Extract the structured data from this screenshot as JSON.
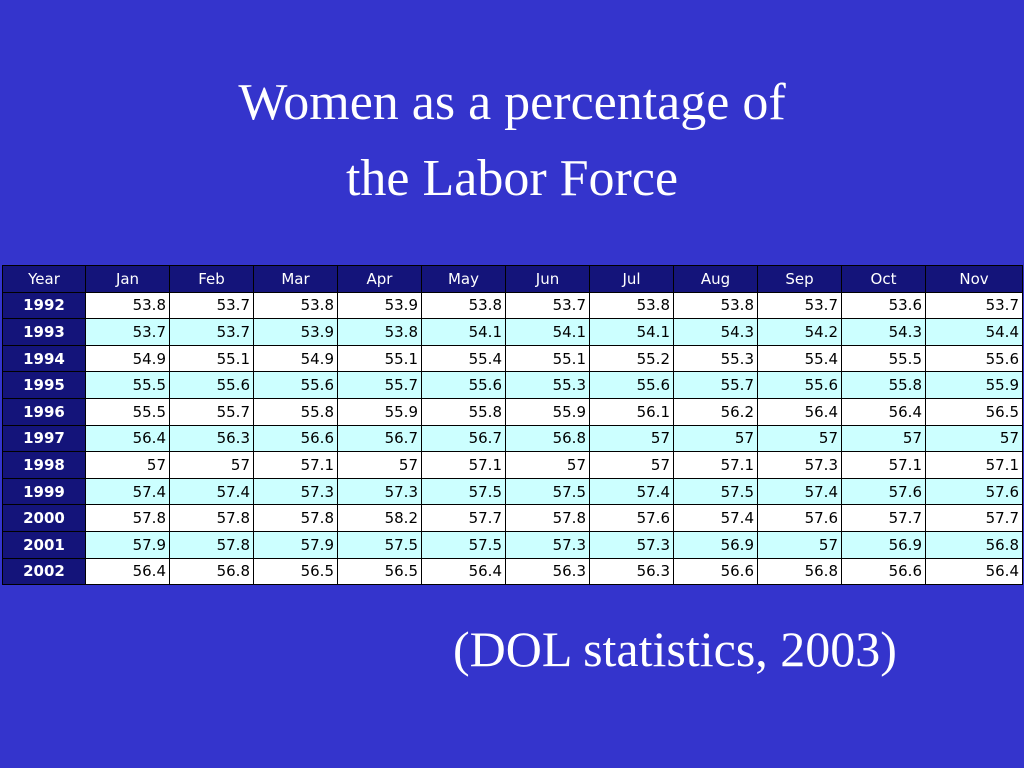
{
  "title": "Women as a percentage of the Labor Force",
  "table": {
    "header": [
      "Year",
      "Jan",
      "Feb",
      "Mar",
      "Apr",
      "May",
      "Jun",
      "Jul",
      "Aug",
      "Sep",
      "Oct",
      "Nov"
    ],
    "rows": [
      [
        "1992",
        53.8,
        53.7,
        53.8,
        53.9,
        53.8,
        53.7,
        53.8,
        53.8,
        53.7,
        53.6,
        53.7
      ],
      [
        "1993",
        53.7,
        53.7,
        53.9,
        53.8,
        54.1,
        54.1,
        54.1,
        54.3,
        54.2,
        54.3,
        54.4
      ],
      [
        "1994",
        54.9,
        55.1,
        54.9,
        55.1,
        55.4,
        55.1,
        55.2,
        55.3,
        55.4,
        55.5,
        55.6
      ],
      [
        "1995",
        55.5,
        55.6,
        55.6,
        55.7,
        55.6,
        55.3,
        55.6,
        55.7,
        55.6,
        55.8,
        55.9
      ],
      [
        "1996",
        55.5,
        55.7,
        55.8,
        55.9,
        55.8,
        55.9,
        56.1,
        56.2,
        56.4,
        56.4,
        56.5
      ],
      [
        "1997",
        56.4,
        56.3,
        56.6,
        56.7,
        56.7,
        56.8,
        57,
        57,
        57,
        57,
        57
      ],
      [
        "1998",
        57,
        57,
        57.1,
        57,
        57.1,
        57,
        57,
        57.1,
        57.3,
        57.1,
        57.1
      ],
      [
        "1999",
        57.4,
        57.4,
        57.3,
        57.3,
        57.5,
        57.5,
        57.4,
        57.5,
        57.4,
        57.6,
        57.6
      ],
      [
        "2000",
        57.8,
        57.8,
        57.8,
        58.2,
        57.7,
        57.8,
        57.6,
        57.4,
        57.6,
        57.7,
        57.7
      ],
      [
        "2001",
        57.9,
        57.8,
        57.9,
        57.5,
        57.5,
        57.3,
        57.3,
        56.9,
        57,
        56.9,
        56.8
      ],
      [
        "2002",
        56.4,
        56.8,
        56.5,
        56.5,
        56.4,
        56.3,
        56.3,
        56.6,
        56.8,
        56.6,
        56.4
      ]
    ]
  },
  "source": "(DOL statistics, 2003)"
}
